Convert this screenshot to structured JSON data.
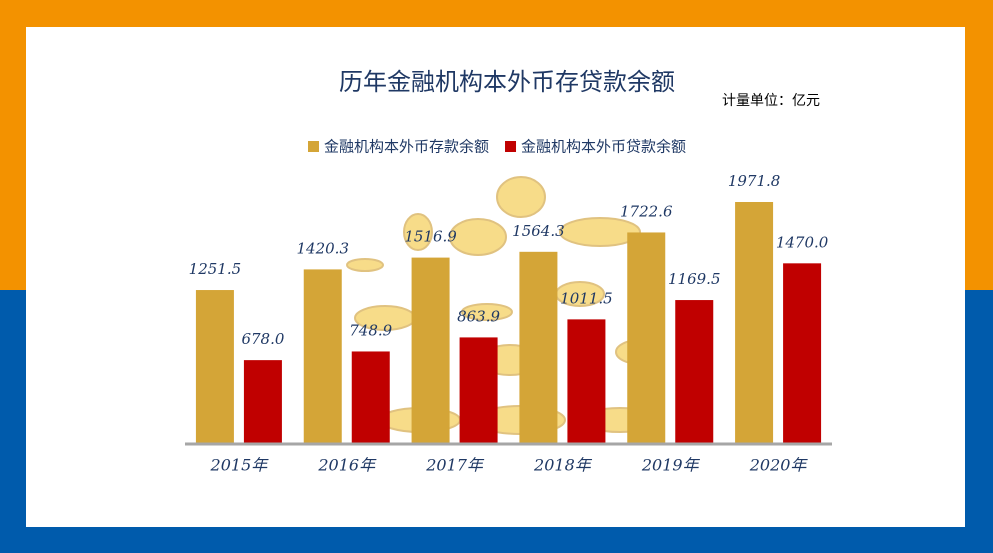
{
  "chart_data": {
    "type": "bar",
    "title": "历年金融机构本外币存贷款余额",
    "unit_note": "计量单位：亿元",
    "categories": [
      "2015年",
      "2016年",
      "2017年",
      "2018年",
      "2019年",
      "2020年"
    ],
    "series": [
      {
        "name": "金融机构本外币存款余额",
        "color": "#D4A537",
        "values": [
          1251.5,
          1420.3,
          1516.9,
          1564.3,
          1722.6,
          1971.8
        ],
        "value_labels": [
          "1251.5",
          "1420.3",
          "1516.9",
          "1564.3",
          "1722.6",
          "1971.8"
        ]
      },
      {
        "name": "金融机构本外币贷款余额",
        "color": "#C00000",
        "values": [
          678.0,
          748.9,
          863.9,
          1011.5,
          1169.5,
          1470.0
        ],
        "value_labels": [
          "678.0",
          "748.9",
          "863.9",
          "1011.5",
          "1169.5",
          "1470.0"
        ]
      }
    ],
    "legend": "top"
  }
}
